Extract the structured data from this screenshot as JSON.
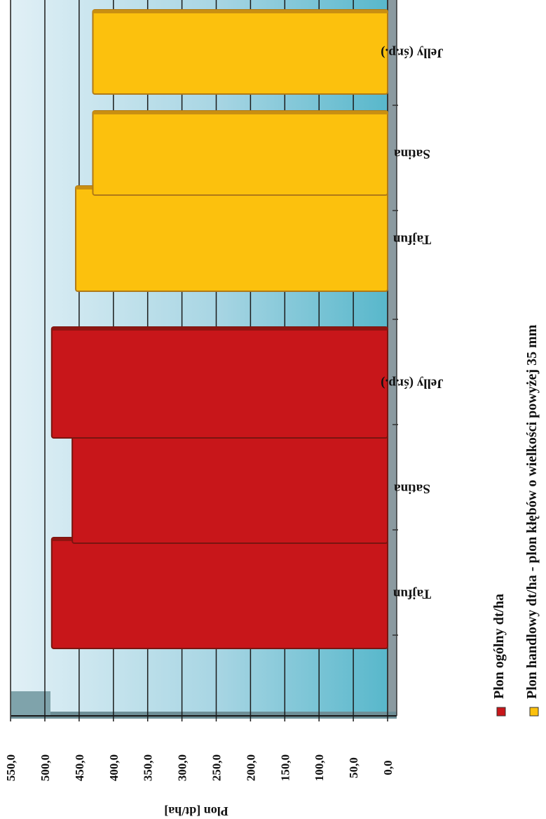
{
  "chart_data": {
    "type": "bar",
    "orientation": "rotated",
    "ylabel": "Plon [dt/ha]",
    "ylim": [
      0,
      550
    ],
    "ticks": [
      "0,0",
      "50,0",
      "100,0",
      "150,0",
      "200,0",
      "250,0",
      "300,0",
      "350,0",
      "400,0",
      "450,0",
      "500,0",
      "550,0"
    ],
    "tick_values": [
      0,
      50,
      100,
      150,
      200,
      250,
      300,
      350,
      400,
      450,
      500,
      550
    ],
    "categories": [
      "Tajfun",
      "Satina",
      "Jelly (śr.p.)"
    ],
    "series": [
      {
        "name": "Plon ogólny dt/ha",
        "values": [
          490,
          460,
          490
        ],
        "color": "#c8161a"
      },
      {
        "name": "Plon handlowy dt/ha - plon kłębów o wielkości powyżej 35 mm",
        "values": [
          455,
          430,
          430
        ],
        "color": "#fcc10d"
      }
    ],
    "grid": true,
    "legend_position": "bottom-right"
  }
}
